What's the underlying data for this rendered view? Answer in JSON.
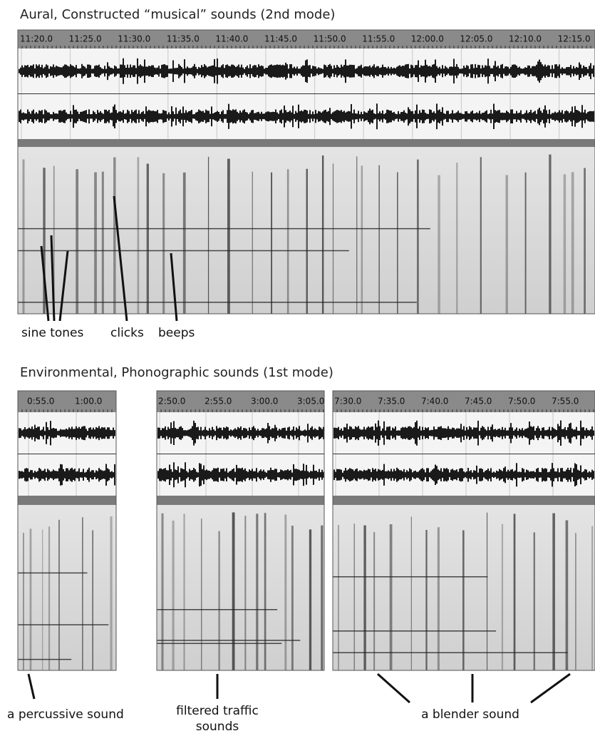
{
  "sections": [
    {
      "title": "Aural, Constructed “musical” sounds (2nd mode)",
      "panels": [
        {
          "ruler": [
            "11:20.0",
            "11:25.0",
            "11:30.0",
            "11:35.0",
            "11:40.0",
            "11:45.0",
            "11:50.0",
            "11:55.0",
            "12:00.0",
            "12:05.0",
            "12:10.0",
            "12:15.0"
          ]
        }
      ],
      "annotations": [
        "sine tones",
        "clicks",
        "beeps"
      ]
    },
    {
      "title": "Environmental, Phonographic sounds (1st mode)",
      "panels": [
        {
          "ruler": [
            "0:55.0",
            "1:00.0"
          ]
        },
        {
          "ruler": [
            "2:50.0",
            "2:55.0",
            "3:00.0",
            "3:05.0"
          ]
        },
        {
          "ruler": [
            "7:30.0",
            "7:35.0",
            "7:40.0",
            "7:45.0",
            "7:50.0",
            "7:55.0"
          ]
        }
      ],
      "annotations": [
        "a percussive sound",
        [
          "filtered traffic",
          "sounds"
        ],
        "a blender sound"
      ]
    }
  ]
}
